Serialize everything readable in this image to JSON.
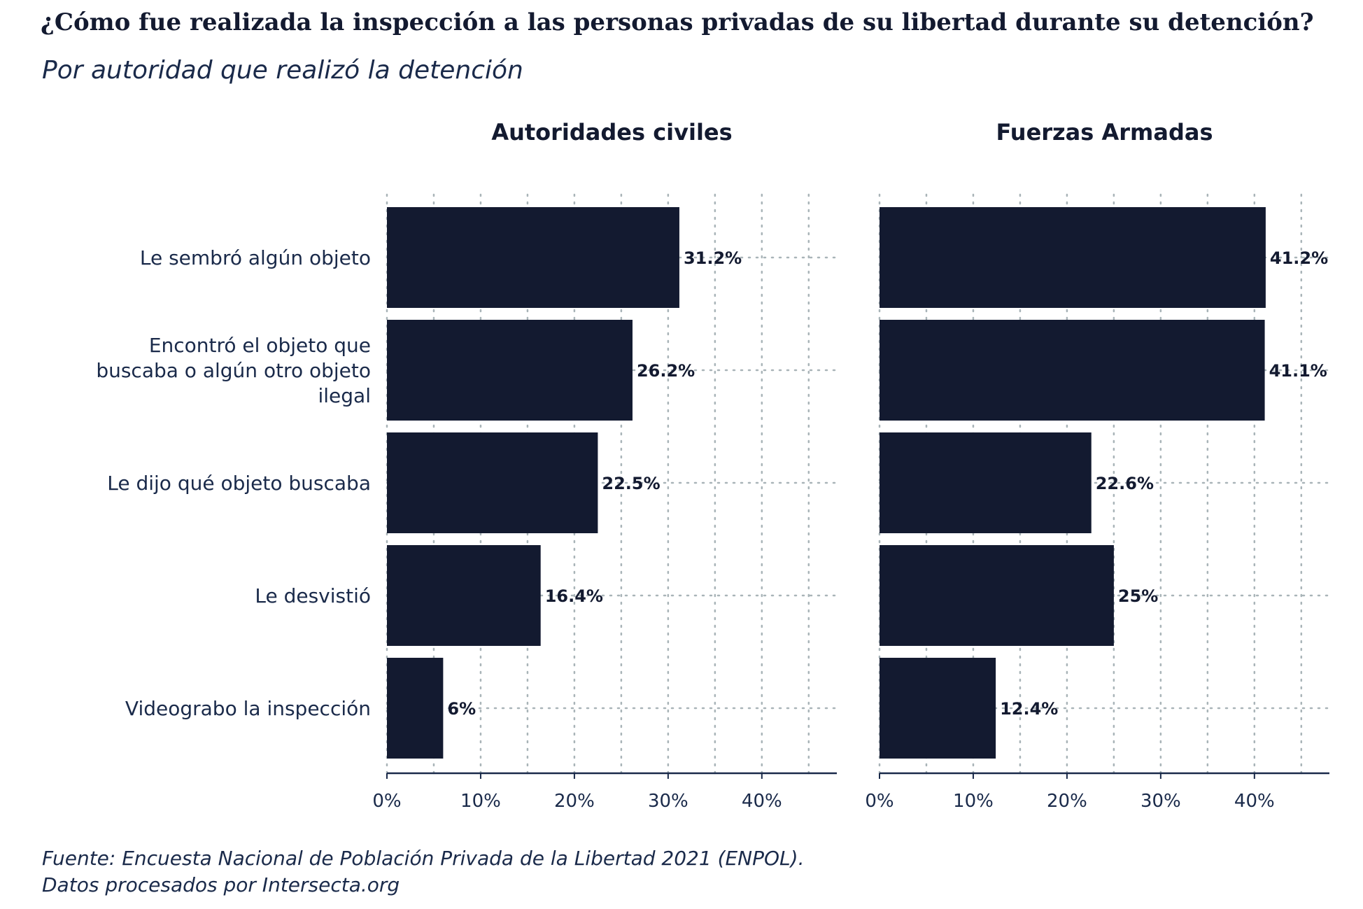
{
  "chart_data": {
    "type": "bar",
    "orientation": "horizontal",
    "title": "¿Cómo fue realizada la inspección a las personas privadas de su libertad durante su detención?",
    "subtitle": "Por autoridad que realizó la detención",
    "caption": [
      "Fuente: Encuesta Nacional de Población Privada de la Libertad 2021 (ENPOL).",
      "Datos procesados por Intersecta.org"
    ],
    "categories": [
      [
        "Le sembró algún objeto"
      ],
      [
        "Encontró el objeto que",
        "buscaba o algún otro objeto",
        "ilegal"
      ],
      [
        "Le dijo qué objeto buscaba"
      ],
      [
        "Le desvistió"
      ],
      [
        "Videograbo la inspección"
      ]
    ],
    "xlim": [
      0,
      48
    ],
    "xticks": [
      0,
      10,
      20,
      30,
      40
    ],
    "xtick_labels": [
      "0%",
      "10%",
      "20%",
      "30%",
      "40%"
    ],
    "grid": true,
    "bar_color": "#131a30",
    "panels": [
      {
        "title": "Autoridades civiles",
        "values": [
          31.2,
          26.2,
          22.5,
          16.4,
          6
        ],
        "labels": [
          "31.2%",
          "26.2%",
          "22.5%",
          "16.4%",
          "6%"
        ]
      },
      {
        "title": "Fuerzas Armadas",
        "values": [
          41.2,
          41.1,
          22.6,
          25,
          12.4
        ],
        "labels": [
          "41.2%",
          "41.1%",
          "22.6%",
          "25%",
          "12.4%"
        ]
      }
    ]
  }
}
